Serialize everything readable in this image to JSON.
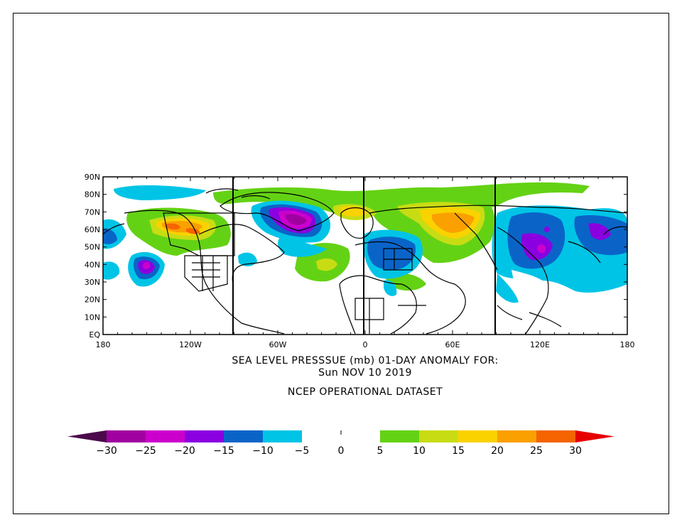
{
  "title": {
    "line1": "SEA LEVEL PRESSSUE (mb)   01-DAY ANOMALY FOR:",
    "line2": "Sun NOV 10 2019",
    "line3": "NCEP OPERATIONAL DATASET"
  },
  "lat_labels": [
    "90N",
    "80N",
    "70N",
    "60N",
    "50N",
    "40N",
    "30N",
    "20N",
    "10N",
    "EQ"
  ],
  "lon_labels": [
    "180",
    "120W",
    "60W",
    "0",
    "60E",
    "120E",
    "180"
  ],
  "colorbar": {
    "colors": [
      "#4b0a4b",
      "#a0009f",
      "#cc00cc",
      "#8a00e0",
      "#0a64c8",
      "#00c4e6",
      "#ffffff",
      "#ffffff",
      "#64d214",
      "#c8dc14",
      "#fad200",
      "#faa000",
      "#f56400",
      "#e60000"
    ],
    "labels": [
      "-30",
      "-25",
      "-20",
      "-15",
      "-10",
      "-5",
      "0",
      "5",
      "10",
      "15",
      "20",
      "25",
      "30"
    ]
  },
  "colors": {
    "frame": "#000000",
    "land": "#000000"
  }
}
